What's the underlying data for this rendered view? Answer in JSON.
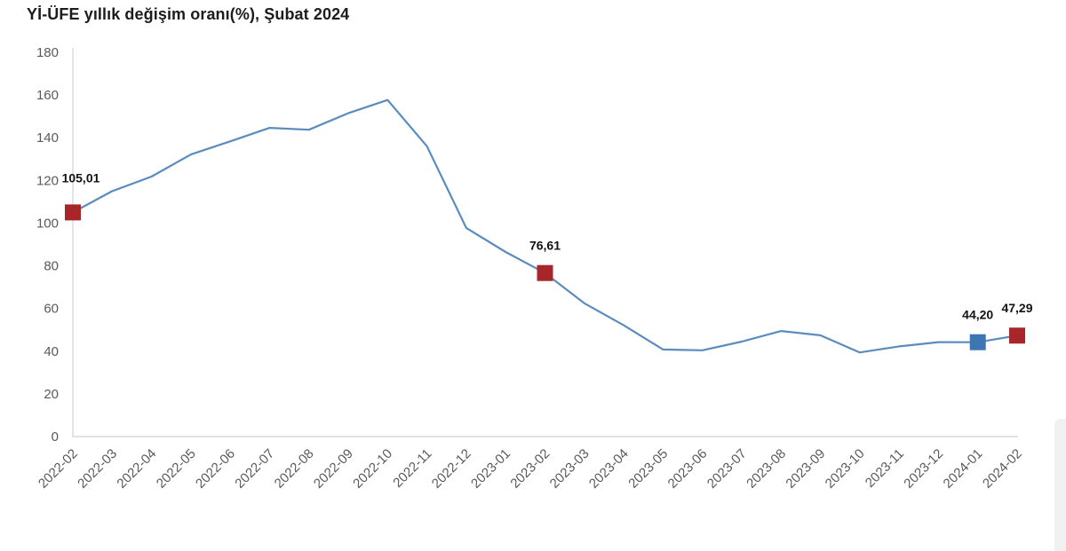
{
  "header": {
    "title": "Yİ-ÜFE yıllık değişim oranı(%), Şubat 2024"
  },
  "chart_data": {
    "type": "line",
    "title": "Yİ-ÜFE yıllık değişim oranı(%), Şubat 2024",
    "x": [
      "2022-02",
      "2022-03",
      "2022-04",
      "2022-05",
      "2022-06",
      "2022-07",
      "2022-08",
      "2022-09",
      "2022-10",
      "2022-11",
      "2022-12",
      "2023-01",
      "2023-02",
      "2023-03",
      "2023-04",
      "2023-05",
      "2023-06",
      "2023-07",
      "2023-08",
      "2023-09",
      "2023-10",
      "2023-11",
      "2023-12",
      "2024-01",
      "2024-02"
    ],
    "series": [
      {
        "name": "Yİ-ÜFE yıllık değişim oranı (%)",
        "values": [
          105.01,
          114.97,
          121.82,
          132.16,
          138.31,
          144.61,
          143.75,
          151.5,
          157.69,
          136.02,
          97.72,
          86.46,
          76.61,
          62.45,
          52.11,
          40.76,
          40.42,
          44.5,
          49.41,
          47.44,
          39.39,
          42.25,
          44.22,
          44.2,
          47.29
        ]
      }
    ],
    "ylim": [
      0,
      180
    ],
    "ytick_labels": [
      "0",
      "20",
      "40",
      "60",
      "80",
      "100",
      "120",
      "140",
      "160",
      "180"
    ],
    "grid": false,
    "legend": "none",
    "xlabel": "",
    "ylabel": "",
    "colors": {
      "line": "#5b8cbe",
      "axis": "#d9d9d9",
      "tick_text": "#58595b",
      "label_text": "#121212",
      "marker_red": "#a8262a",
      "marker_blue": "#3d76b2"
    },
    "highlighted_points": [
      {
        "x": "2022-02",
        "index": 0,
        "value": 105.01,
        "label": "105,01",
        "marker": "red"
      },
      {
        "x": "2023-02",
        "index": 12,
        "value": 76.61,
        "label": "76,61",
        "marker": "red"
      },
      {
        "x": "2024-01",
        "index": 23,
        "value": 44.2,
        "label": "44,20",
        "marker": "blue"
      },
      {
        "x": "2024-02",
        "index": 24,
        "value": 47.29,
        "label": "47,29",
        "marker": "red"
      }
    ]
  }
}
